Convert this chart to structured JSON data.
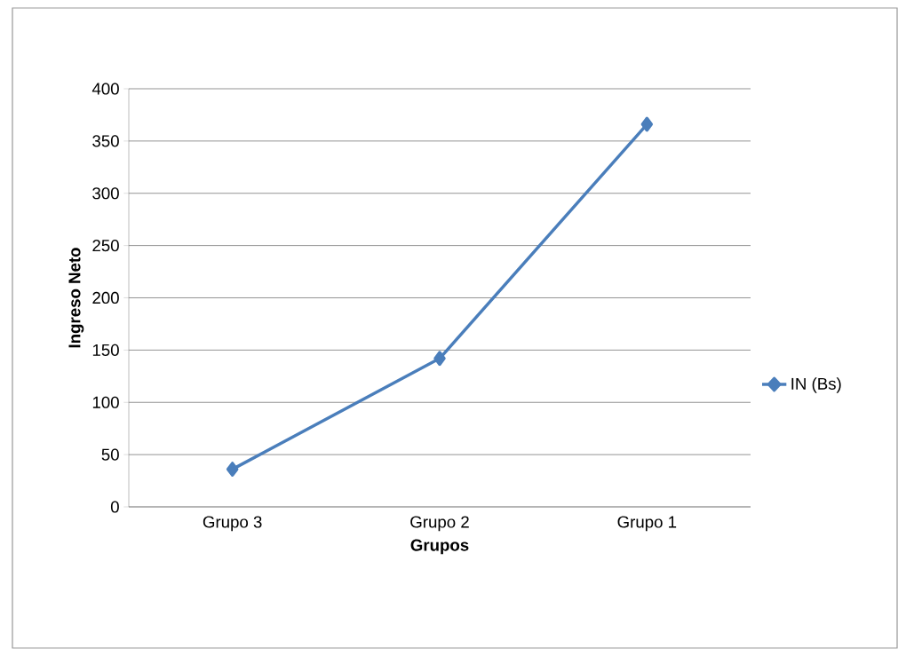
{
  "chart_data": {
    "type": "line",
    "xlabel": "Grupos",
    "ylabel": "Ingreso Neto",
    "categories": [
      "Grupo 3",
      "Grupo 2",
      "Grupo 1"
    ],
    "series": [
      {
        "name": "IN (Bs)",
        "color": "#4a7ebb",
        "values": [
          36,
          142,
          366
        ]
      }
    ],
    "ylim": [
      0,
      400
    ],
    "yticks": [
      0,
      50,
      100,
      150,
      200,
      250,
      300,
      350,
      400
    ],
    "grid": "y",
    "legend": "right",
    "marker": "diamond",
    "line_style": "solid"
  }
}
